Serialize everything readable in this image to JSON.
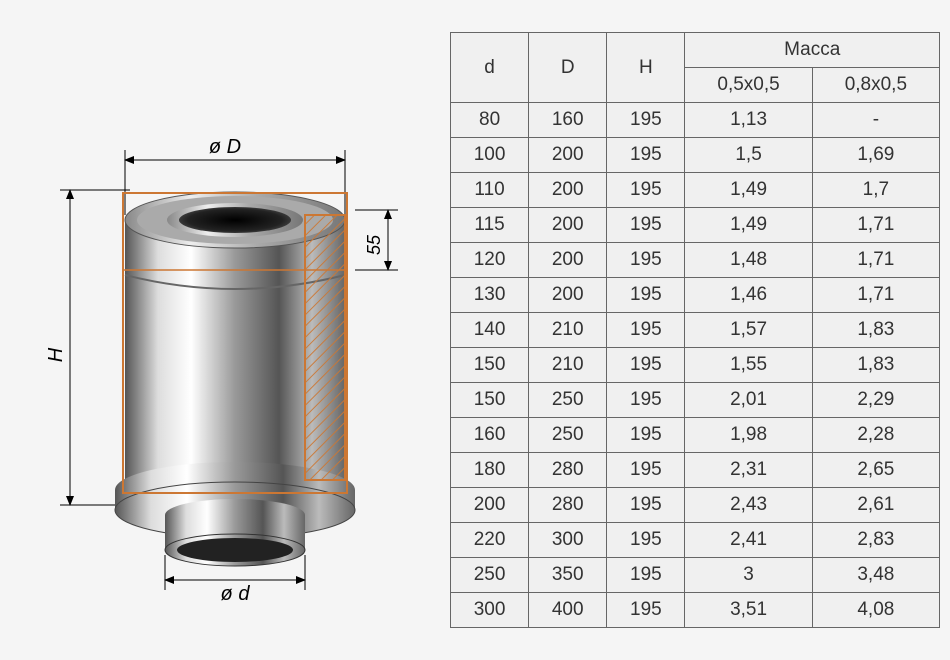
{
  "diagram": {
    "label_top": "ø D",
    "label_bottom": "ø d",
    "label_side": "H",
    "label_inner": "55",
    "colors": {
      "outline": "#cc7733",
      "arrow": "#000000",
      "hatch": "#cc7733",
      "pipe_light": "#e8e8e8",
      "pipe_mid": "#888888",
      "pipe_dark": "#333333",
      "pipe_hilite": "#ffffff"
    }
  },
  "table": {
    "headers": {
      "d": "d",
      "D": "D",
      "H": "H",
      "mass_group": "Масса",
      "mass_sub1": "0,5x0,5",
      "mass_sub2": "0,8x0,5"
    },
    "rows": [
      {
        "d": "80",
        "D": "160",
        "H": "195",
        "m1": "1,13",
        "m2": "-"
      },
      {
        "d": "100",
        "D": "200",
        "H": "195",
        "m1": "1,5",
        "m2": "1,69"
      },
      {
        "d": "110",
        "D": "200",
        "H": "195",
        "m1": "1,49",
        "m2": "1,7"
      },
      {
        "d": "115",
        "D": "200",
        "H": "195",
        "m1": "1,49",
        "m2": "1,71"
      },
      {
        "d": "120",
        "D": "200",
        "H": "195",
        "m1": "1,48",
        "m2": "1,71"
      },
      {
        "d": "130",
        "D": "200",
        "H": "195",
        "m1": "1,46",
        "m2": "1,71"
      },
      {
        "d": "140",
        "D": "210",
        "H": "195",
        "m1": "1,57",
        "m2": "1,83"
      },
      {
        "d": "150",
        "D": "210",
        "H": "195",
        "m1": "1,55",
        "m2": "1,83"
      },
      {
        "d": "150",
        "D": "250",
        "H": "195",
        "m1": "2,01",
        "m2": "2,29"
      },
      {
        "d": "160",
        "D": "250",
        "H": "195",
        "m1": "1,98",
        "m2": "2,28"
      },
      {
        "d": "180",
        "D": "280",
        "H": "195",
        "m1": "2,31",
        "m2": "2,65"
      },
      {
        "d": "200",
        "D": "280",
        "H": "195",
        "m1": "2,43",
        "m2": "2,61"
      },
      {
        "d": "220",
        "D": "300",
        "H": "195",
        "m1": "2,41",
        "m2": "2,83"
      },
      {
        "d": "250",
        "D": "350",
        "H": "195",
        "m1": "3",
        "m2": "3,48"
      },
      {
        "d": "300",
        "D": "400",
        "H": "195",
        "m1": "3,51",
        "m2": "4,08"
      }
    ],
    "styling": {
      "border_color": "#666666",
      "bg_color": "#f0f0f0",
      "text_color": "#333333",
      "font_size": 19
    }
  }
}
